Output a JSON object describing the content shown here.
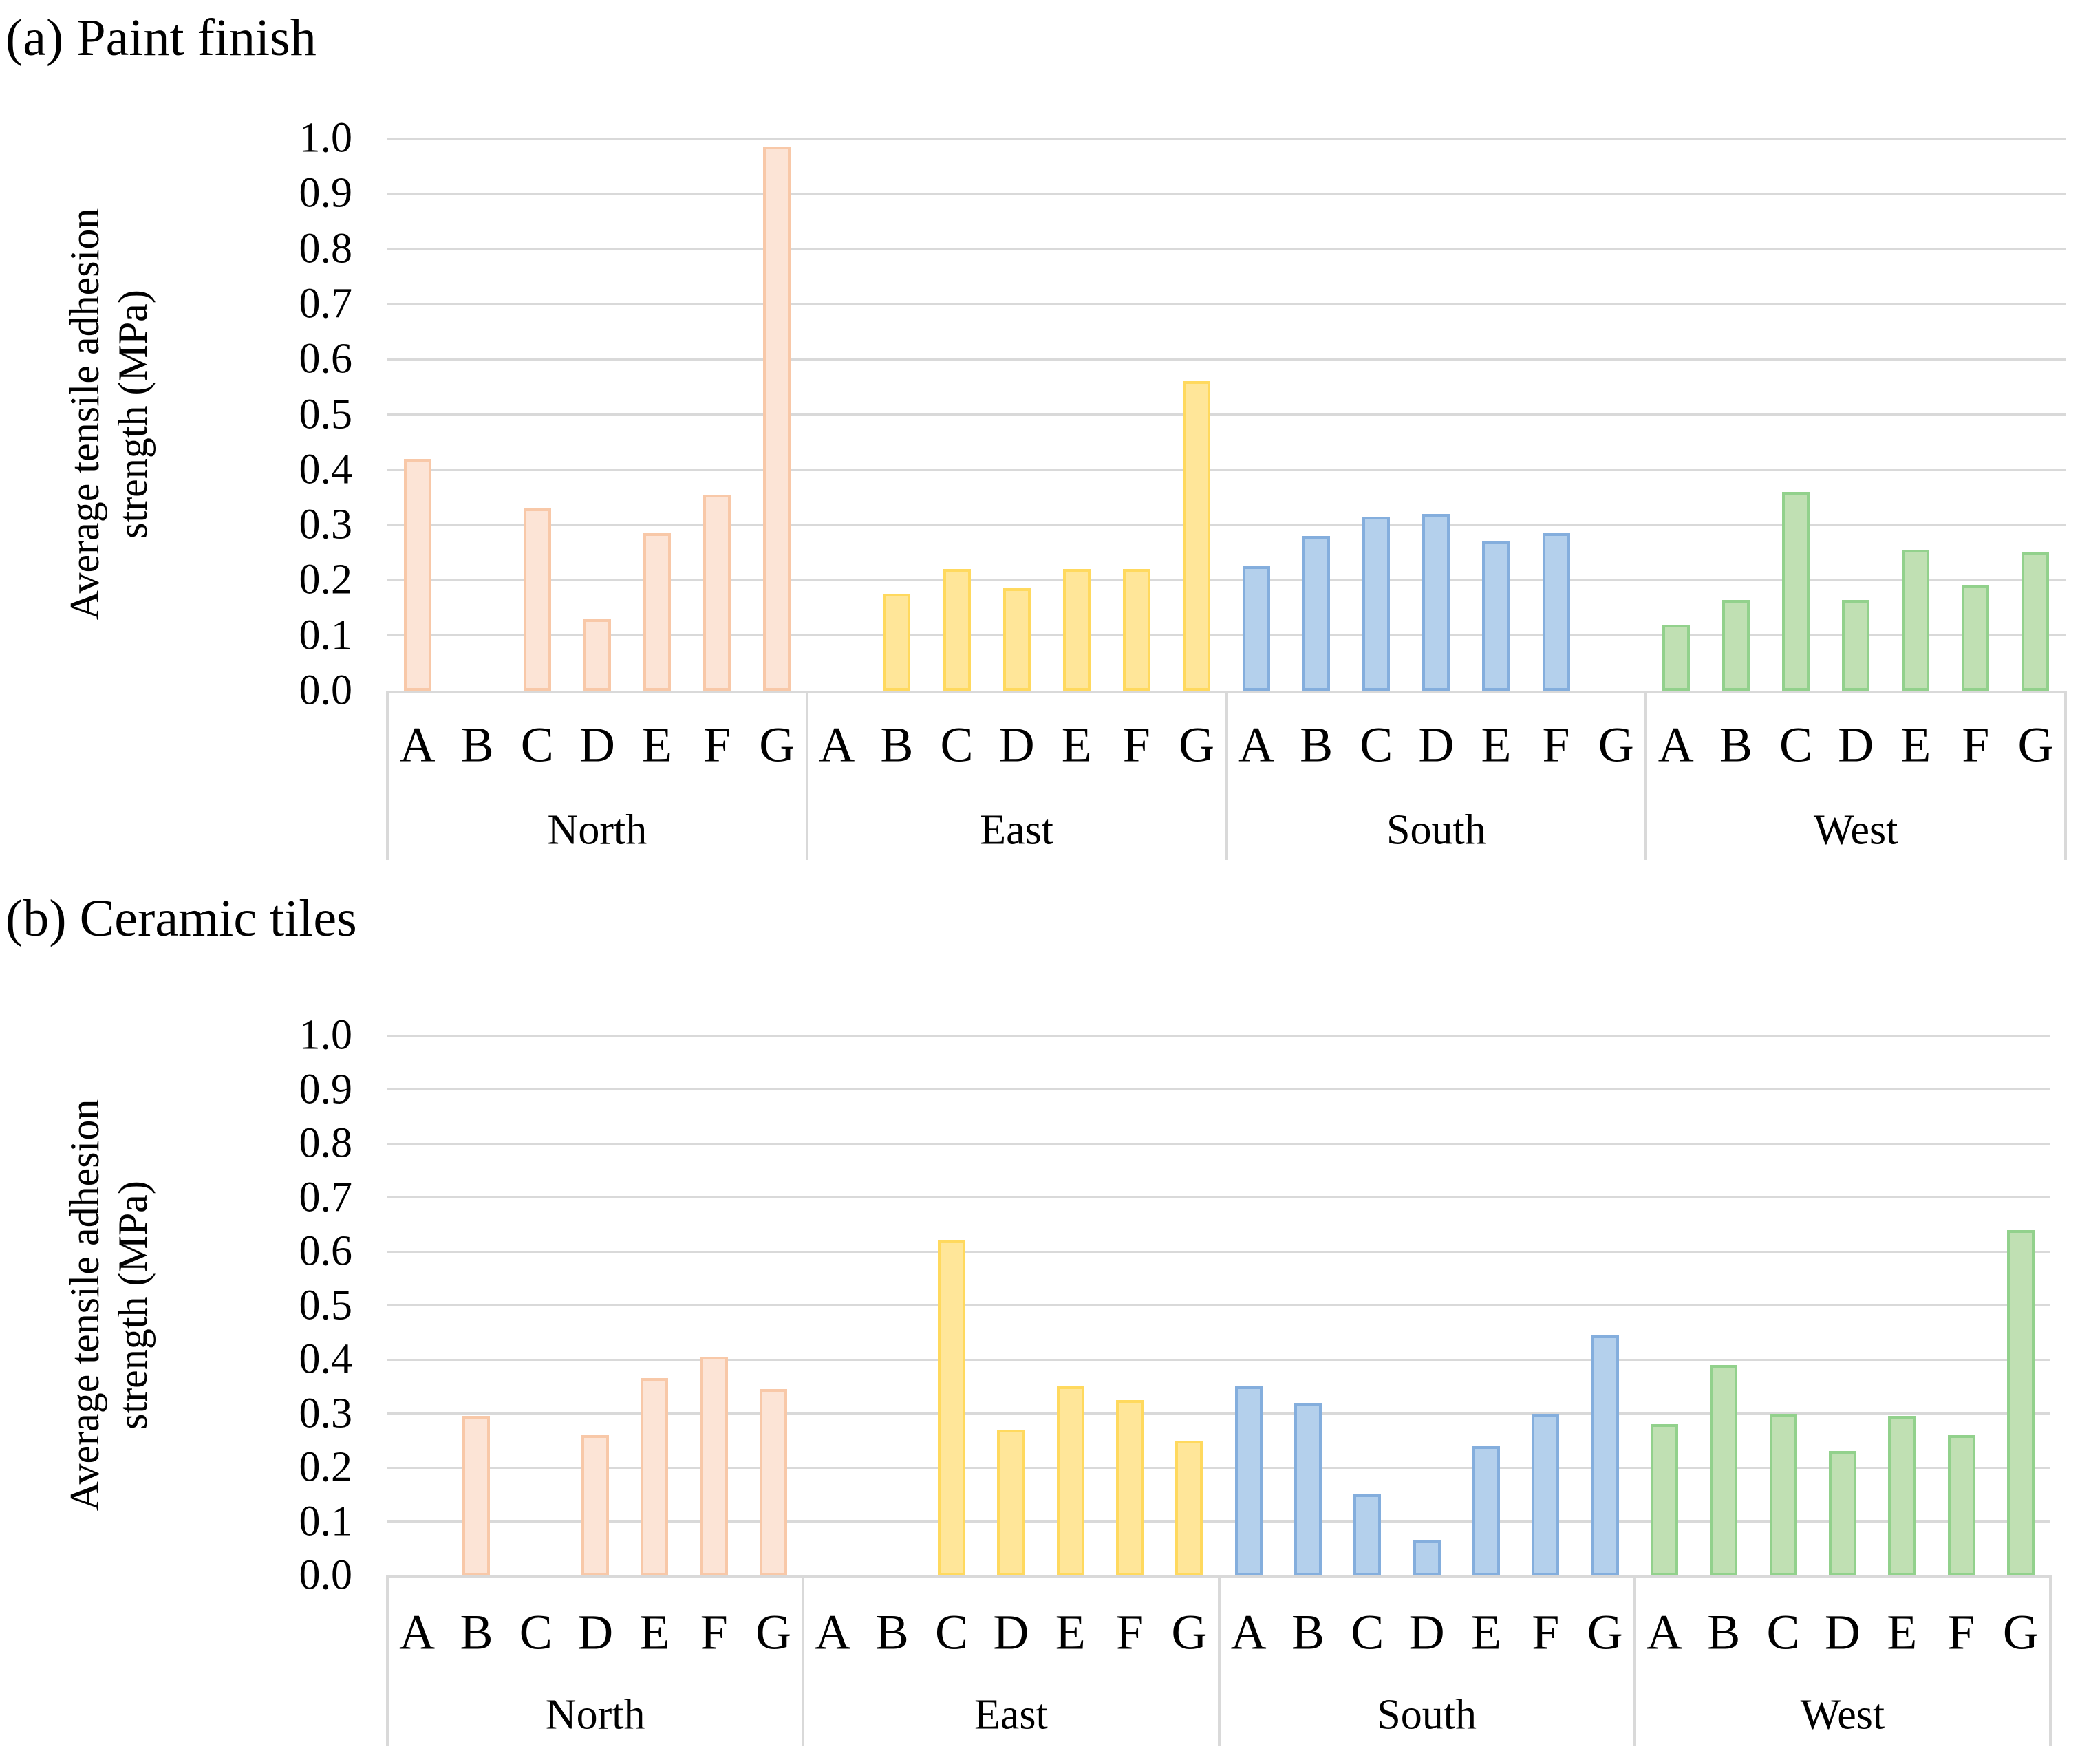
{
  "style_colors": {
    "gridline": "#D9D9D9",
    "axis": "#D9D9D9",
    "text": "#000000",
    "background": "#FFFFFF"
  },
  "chart_data": [
    {
      "type": "bar",
      "title": "(a) Paint finish",
      "ylabel": "Average tensile adhesion strength (MPa)",
      "ylabel_lines": [
        "Average tensile adhesion",
        "strength (MPa)"
      ],
      "ylim": [
        0.0,
        1.0
      ],
      "ytick_step": 0.1,
      "y_tick_labels": [
        "1.0",
        "0.9",
        "0.8",
        "0.7",
        "0.6",
        "0.5",
        "0.4",
        "0.3",
        "0.2",
        "0.1",
        "0.0"
      ],
      "grid": true,
      "legend": "none",
      "categories": [
        "A",
        "B",
        "C",
        "D",
        "E",
        "F",
        "G"
      ],
      "group_labels": [
        "North",
        "East",
        "South",
        "West"
      ],
      "series": [
        {
          "name": "North",
          "color_fill": "#FCE4D6",
          "color_border": "#F8C8A8",
          "values": [
            0.42,
            null,
            0.33,
            0.13,
            0.285,
            0.355,
            0.985
          ]
        },
        {
          "name": "East",
          "color_fill": "#FFE699",
          "color_border": "#FFD95E",
          "values": [
            null,
            0.175,
            0.22,
            0.185,
            0.22,
            0.22,
            0.56
          ]
        },
        {
          "name": "South",
          "color_fill": "#B4D0EC",
          "color_border": "#84AEDD",
          "values": [
            0.225,
            0.28,
            0.315,
            0.32,
            0.27,
            0.285,
            null
          ]
        },
        {
          "name": "West",
          "color_fill": "#C0E0B3",
          "color_border": "#92D18C",
          "values": [
            0.12,
            0.165,
            0.36,
            0.165,
            0.255,
            0.19,
            0.25
          ]
        }
      ]
    },
    {
      "type": "bar",
      "title": "(b) Ceramic tiles",
      "ylabel": "Average tensile adhesion strength (MPa)",
      "ylabel_lines": [
        "Average tensile adhesion",
        "strength (MPa)"
      ],
      "ylim": [
        0.0,
        1.0
      ],
      "ytick_step": 0.1,
      "y_tick_labels": [
        "1.0",
        "0.9",
        "0.8",
        "0.7",
        "0.6",
        "0.5",
        "0.4",
        "0.3",
        "0.2",
        "0.1",
        "0.0"
      ],
      "grid": true,
      "legend": "none",
      "categories": [
        "A",
        "B",
        "C",
        "D",
        "E",
        "F",
        "G"
      ],
      "group_labels": [
        "North",
        "East",
        "South",
        "West"
      ],
      "series": [
        {
          "name": "North",
          "color_fill": "#FCE4D6",
          "color_border": "#F8C8A8",
          "values": [
            null,
            0.295,
            null,
            0.26,
            0.365,
            0.405,
            0.345
          ]
        },
        {
          "name": "East",
          "color_fill": "#FFE699",
          "color_border": "#FFD95E",
          "values": [
            null,
            null,
            0.62,
            0.27,
            0.35,
            0.325,
            0.25
          ]
        },
        {
          "name": "South",
          "color_fill": "#B4D0EC",
          "color_border": "#84AEDD",
          "values": [
            0.35,
            0.32,
            0.15,
            0.065,
            0.24,
            0.3,
            0.445
          ]
        },
        {
          "name": "West",
          "color_fill": "#C0E0B3",
          "color_border": "#92D18C",
          "values": [
            0.28,
            0.39,
            0.3,
            0.23,
            0.295,
            0.26,
            0.64
          ]
        }
      ]
    }
  ]
}
